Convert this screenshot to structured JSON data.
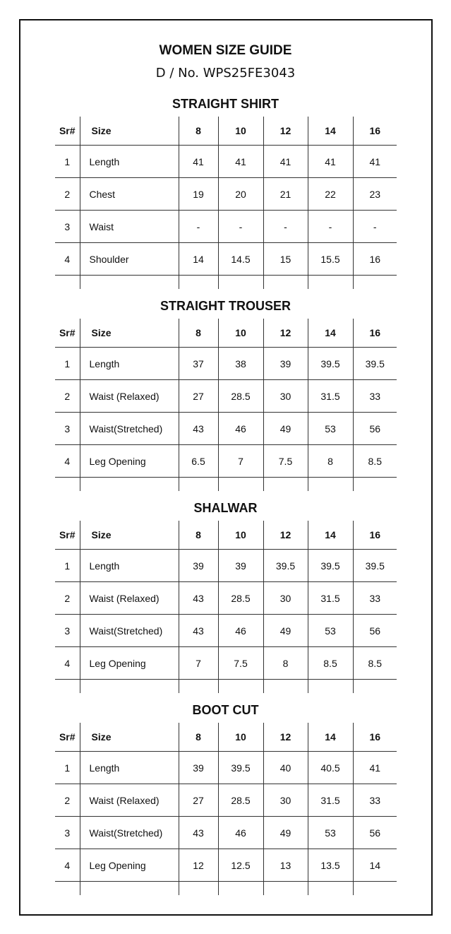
{
  "header": {
    "title": "WOMEN SIZE GUIDE",
    "design_no": "D / No. WPS25FE3043"
  },
  "columns": {
    "sr": "Sr#",
    "size": "Size",
    "sizes": [
      "8",
      "10",
      "12",
      "14",
      "16"
    ]
  },
  "sections": [
    {
      "title": "STRAIGHT SHIRT",
      "rows": [
        {
          "sr": "1",
          "label": "Length",
          "values": [
            "41",
            "41",
            "41",
            "41",
            "41"
          ]
        },
        {
          "sr": "2",
          "label": "Chest",
          "values": [
            "19",
            "20",
            "21",
            "22",
            "23"
          ]
        },
        {
          "sr": "3",
          "label": "Waist",
          "values": [
            "-",
            "-",
            "-",
            "-",
            "-"
          ]
        },
        {
          "sr": "4",
          "label": "Shoulder",
          "values": [
            "14",
            "14.5",
            "15",
            "15.5",
            "16"
          ]
        }
      ]
    },
    {
      "title": "STRAIGHT TROUSER",
      "rows": [
        {
          "sr": "1",
          "label": "Length",
          "values": [
            "37",
            "38",
            "39",
            "39.5",
            "39.5"
          ]
        },
        {
          "sr": "2",
          "label": "Waist (Relaxed)",
          "values": [
            "27",
            "28.5",
            "30",
            "31.5",
            "33"
          ]
        },
        {
          "sr": "3",
          "label": "Waist(Stretched)",
          "values": [
            "43",
            "46",
            "49",
            "53",
            "56"
          ]
        },
        {
          "sr": "4",
          "label": "Leg Opening",
          "values": [
            "6.5",
            "7",
            "7.5",
            "8",
            "8.5"
          ]
        }
      ]
    },
    {
      "title": "SHALWAR",
      "rows": [
        {
          "sr": "1",
          "label": "Length",
          "values": [
            "39",
            "39",
            "39.5",
            "39.5",
            "39.5"
          ]
        },
        {
          "sr": "2",
          "label": "Waist (Relaxed)",
          "values": [
            "43",
            "28.5",
            "30",
            "31.5",
            "33"
          ]
        },
        {
          "sr": "3",
          "label": "Waist(Stretched)",
          "values": [
            "43",
            "46",
            "49",
            "53",
            "56"
          ]
        },
        {
          "sr": "4",
          "label": "Leg Opening",
          "values": [
            "7",
            "7.5",
            "8",
            "8.5",
            "8.5"
          ]
        }
      ]
    },
    {
      "title": "BOOT CUT",
      "rows": [
        {
          "sr": "1",
          "label": "Length",
          "values": [
            "39",
            "39.5",
            "40",
            "40.5",
            "41"
          ]
        },
        {
          "sr": "2",
          "label": "Waist (Relaxed)",
          "values": [
            "27",
            "28.5",
            "30",
            "31.5",
            "33"
          ]
        },
        {
          "sr": "3",
          "label": "Waist(Stretched)",
          "values": [
            "43",
            "46",
            "49",
            "53",
            "56"
          ]
        },
        {
          "sr": "4",
          "label": "Leg Opening",
          "values": [
            "12",
            "12.5",
            "13",
            "13.5",
            "14"
          ]
        }
      ]
    }
  ]
}
